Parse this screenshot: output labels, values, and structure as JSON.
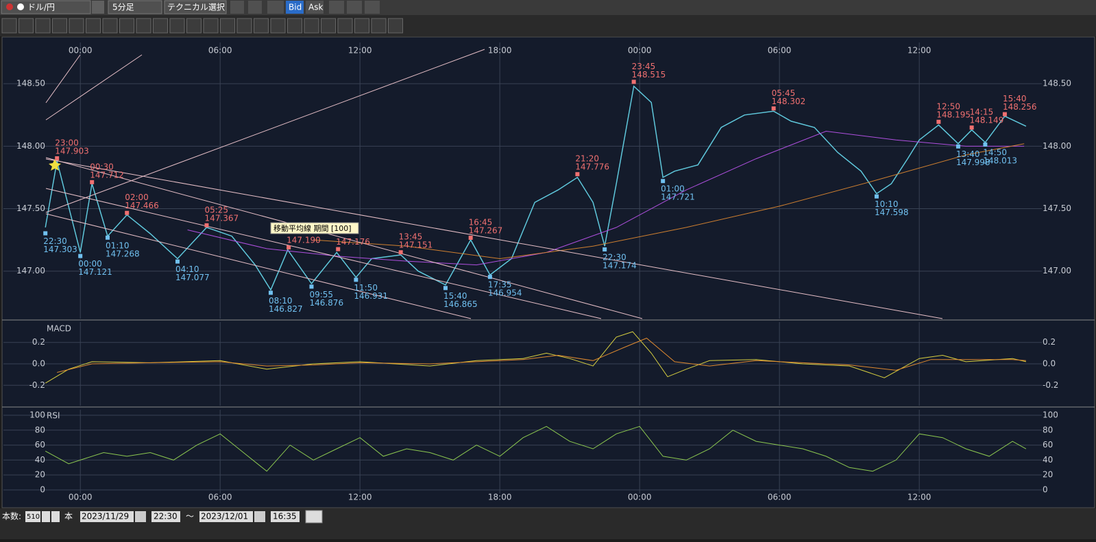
{
  "toolbar": {
    "pair": "ドル/円",
    "timeframe": "5分足",
    "technical": "テクニカル選択",
    "bid": "Bid",
    "ask": "Ask"
  },
  "chart_data": [
    {
      "type": "line",
      "xlim": [
        -3.3,
        41.26
      ],
      "ylim": [
        146.62,
        148.83
      ],
      "xticks": [
        {
          "value": 0,
          "label": "00:00"
        },
        {
          "value": 6,
          "label": "06:00"
        },
        {
          "value": 12,
          "label": "12:00"
        },
        {
          "value": 18,
          "label": "18:00"
        },
        {
          "value": 24,
          "label": "00:00"
        },
        {
          "value": 30,
          "label": "06:00"
        },
        {
          "value": 36,
          "label": "12:00"
        }
      ],
      "yticks": [
        {
          "value": 147,
          "label": "147.00"
        },
        {
          "value": 147.5,
          "label": "147.50"
        },
        {
          "value": 148,
          "label": "148.00"
        },
        {
          "value": 148.5,
          "label": "148.50"
        }
      ],
      "grid": true,
      "series": [
        {
          "color": "#5fc8dc",
          "x": [
            -1.5,
            -1,
            0,
            0.5,
            1.17,
            2,
            3,
            4.17,
            5.42,
            6.5,
            7.5,
            8.17,
            8.9,
            9.92,
            11,
            11.83,
            12.5,
            13.75,
            14.5,
            15.67,
            16.75,
            17.58,
            18.5,
            19.5,
            20.5,
            21.33,
            22,
            22.5,
            23,
            23.75,
            24.5,
            25,
            25.5,
            26.5,
            27.5,
            28.5,
            29.75,
            30.5,
            31.5,
            32.5,
            33.5,
            34.17,
            34.8,
            35.5,
            36,
            36.83,
            37.5,
            37.67,
            38.25,
            38.83,
            39.67,
            40.58
          ],
          "values": [
            147.35,
            147.88,
            147.15,
            147.7,
            147.28,
            147.45,
            147.3,
            147.1,
            147.35,
            147.28,
            147.05,
            146.85,
            147.17,
            146.9,
            147.15,
            146.95,
            147.1,
            147.13,
            147,
            146.89,
            147.25,
            146.97,
            147.1,
            147.55,
            147.65,
            147.75,
            147.55,
            147.2,
            147.7,
            148.48,
            148.35,
            147.75,
            147.8,
            147.85,
            148.15,
            148.25,
            148.28,
            148.2,
            148.15,
            147.95,
            147.8,
            147.62,
            147.7,
            147.9,
            148.05,
            148.17,
            148.05,
            148.02,
            148.13,
            148.03,
            148.24,
            148.16
          ]
        },
        {
          "color": "#b050e0",
          "x": [
            4.6,
            8,
            11,
            14,
            17,
            20,
            23,
            26,
            29,
            32,
            35,
            38,
            40.5
          ],
          "values": [
            147.33,
            147.18,
            147.12,
            147.08,
            147.05,
            147.15,
            147.35,
            147.65,
            147.9,
            148.12,
            148.05,
            148,
            148
          ]
        },
        {
          "color": "#d08030",
          "x": [
            10,
            14,
            18,
            22,
            26,
            30,
            34,
            38,
            40.5
          ],
          "values": [
            147.25,
            147.2,
            147.1,
            147.2,
            147.35,
            147.52,
            147.72,
            147.93,
            148.02
          ]
        }
      ],
      "highs": {
        "color": "#f07070",
        "x": [
          -1,
          0.5,
          2,
          5.42,
          8.94,
          11.06,
          13.75,
          16.75,
          21.33,
          23.75,
          29.75,
          36.83,
          38.25,
          39.67
        ],
        "times": [
          "23:00",
          "00:30",
          "02:00",
          "05:25",
          null,
          null,
          "13:45",
          "16:45",
          "21:20",
          "23:45",
          "05:45",
          "12:50",
          "14:15",
          "15:40"
        ],
        "values": [
          147.903,
          147.712,
          147.466,
          147.367,
          147.19,
          147.176,
          147.151,
          147.267,
          147.776,
          148.515,
          148.302,
          148.195,
          148.149,
          148.256
        ],
        "value_labels": [
          "147.903",
          "147.712",
          "147.466",
          "147.367",
          "147.190",
          "147.176",
          "147.151",
          "147.267",
          "147.776",
          "148.515",
          "148.302",
          "148.195",
          "148.149",
          "148.256"
        ]
      },
      "lows": {
        "color": "#70c0f0",
        "x": [
          -1.5,
          0,
          1.17,
          4.17,
          8.17,
          9.92,
          11.83,
          15.67,
          17.58,
          22.5,
          25,
          34.17,
          37.67,
          38.83
        ],
        "times": [
          "22:30",
          "00:00",
          "01:10",
          "04:10",
          "08:10",
          "09:55",
          "11:50",
          "15:40",
          "17:35",
          "22:30",
          "01:00",
          "10:10",
          "13:40",
          "14:50"
        ],
        "values": [
          147.303,
          147.121,
          147.268,
          147.077,
          146.827,
          146.876,
          146.931,
          146.865,
          146.954,
          147.174,
          147.721,
          147.598,
          147.998,
          148.013
        ]
      },
      "tooltip": "移動平均線 期間 [100]"
    },
    {
      "type": "line",
      "title": "MACD",
      "xlim": [
        -3.3,
        41.26
      ],
      "ylim": [
        -0.39,
        0.39
      ],
      "yticks": [
        -0.2,
        {
          "value": 0,
          "label": "0.0"
        },
        0.2
      ],
      "grid": true,
      "series": [
        {
          "color": "#d8d040",
          "x": [
            -1.5,
            -0.5,
            0.5,
            3,
            6,
            8,
            10,
            12,
            15,
            17,
            19,
            20,
            21,
            22,
            23,
            23.7,
            24.5,
            25.2,
            26,
            27,
            29,
            31,
            33,
            34.5,
            36,
            37,
            38,
            40,
            40.58
          ],
          "values": [
            -0.18,
            -0.05,
            0.02,
            0.01,
            0.03,
            -0.05,
            0,
            0.02,
            -0.02,
            0.03,
            0.05,
            0.1,
            0.05,
            -0.02,
            0.25,
            0.3,
            0.1,
            -0.12,
            -0.05,
            0.03,
            0.04,
            0,
            -0.02,
            -0.13,
            0.05,
            0.08,
            0.02,
            0.05,
            0.02
          ]
        },
        {
          "color": "#e08a30",
          "x": [
            -1,
            0.5,
            3,
            6,
            8,
            10,
            12,
            15,
            17,
            19,
            20.5,
            22,
            23.3,
            24.3,
            25.5,
            27,
            29,
            31,
            33,
            35,
            36.5,
            38,
            40,
            40.58
          ],
          "values": [
            -0.08,
            0,
            0.01,
            0.02,
            -0.02,
            -0.01,
            0.01,
            0,
            0.02,
            0.04,
            0.08,
            0.03,
            0.15,
            0.24,
            0.02,
            -0.02,
            0.03,
            0.01,
            -0.01,
            -0.06,
            0.04,
            0.04,
            0.04,
            0.03
          ]
        }
      ]
    },
    {
      "type": "line",
      "title": "RSI",
      "xlim": [
        -3.3,
        41.26
      ],
      "ylim": [
        -4.6,
        107.3
      ],
      "xticks": [
        {
          "value": 0,
          "label": "00:00"
        },
        {
          "value": 6,
          "label": "06:00"
        },
        {
          "value": 12,
          "label": "12:00"
        },
        {
          "value": 18,
          "label": "18:00"
        },
        {
          "value": 24,
          "label": "00:00"
        },
        {
          "value": 30,
          "label": "06:00"
        },
        {
          "value": 36,
          "label": "12:00"
        }
      ],
      "yticks": [
        0,
        20,
        40,
        60,
        80,
        100
      ],
      "grid": true,
      "series": [
        {
          "color": "#8cc850",
          "x": [
            -1.5,
            -0.5,
            0,
            1,
            2,
            3,
            4,
            5,
            6,
            7,
            8,
            9,
            10,
            11,
            12,
            13,
            14,
            15,
            16,
            17,
            18,
            19,
            20,
            21,
            22,
            23,
            24,
            25,
            26,
            27,
            28,
            29,
            30,
            31,
            32,
            33,
            34,
            35,
            36,
            37,
            38,
            39,
            40,
            40.58
          ],
          "values": [
            52,
            35,
            40,
            50,
            45,
            50,
            40,
            60,
            75,
            50,
            25,
            60,
            40,
            55,
            70,
            45,
            55,
            50,
            40,
            60,
            45,
            70,
            85,
            65,
            55,
            75,
            85,
            45,
            40,
            55,
            80,
            65,
            60,
            55,
            45,
            30,
            25,
            40,
            75,
            70,
            55,
            45,
            65,
            55
          ]
        }
      ]
    }
  ],
  "footer": {
    "count_label": "本数:",
    "count": 510,
    "unit": "本",
    "from_date": "2023/11/29",
    "from_time": "22:30",
    "sep": "〜",
    "to_date": "2023/12/01",
    "to_time": "16:35"
  }
}
